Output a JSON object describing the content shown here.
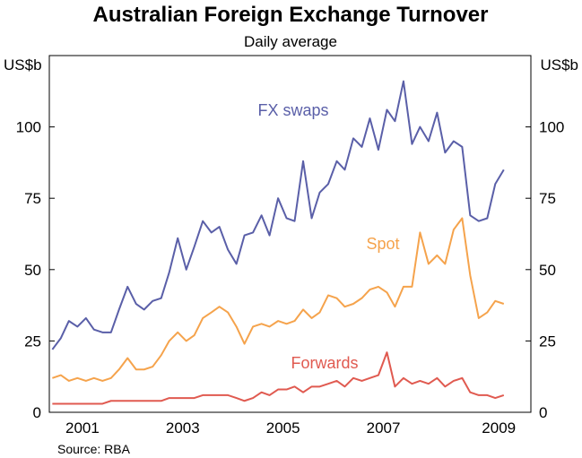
{
  "chart_data": {
    "type": "line",
    "title": "Australian Foreign Exchange Turnover",
    "subtitle": "Daily average",
    "y_label": "US$b",
    "y2_label": "US$b",
    "source": "Source: RBA",
    "x": [
      2000.9,
      2001.07,
      2001.23,
      2001.4,
      2001.57,
      2001.73,
      2001.9,
      2002.07,
      2002.23,
      2002.4,
      2002.57,
      2002.73,
      2002.9,
      2003.07,
      2003.23,
      2003.4,
      2003.57,
      2003.73,
      2003.9,
      2004.07,
      2004.23,
      2004.4,
      2004.57,
      2004.73,
      2004.9,
      2005.07,
      2005.23,
      2005.4,
      2005.57,
      2005.73,
      2005.9,
      2006.07,
      2006.23,
      2006.4,
      2006.57,
      2006.73,
      2006.9,
      2007.07,
      2007.23,
      2007.4,
      2007.57,
      2007.73,
      2007.9,
      2008.07,
      2008.23,
      2008.4,
      2008.57,
      2008.73,
      2008.9,
      2009.07,
      2009.23,
      2009.4,
      2009.57,
      2009.73,
      2009.9
    ],
    "series": [
      {
        "name": "FX swaps",
        "color": "#5a5fa8",
        "values": [
          22,
          26,
          32,
          30,
          33,
          29,
          28,
          28,
          36,
          44,
          38,
          36,
          39,
          40,
          49,
          61,
          50,
          58,
          67,
          63,
          65,
          57,
          52,
          62,
          63,
          69,
          62,
          75,
          68,
          67,
          88,
          68,
          77,
          80,
          88,
          85,
          96,
          93,
          103,
          92,
          106,
          102,
          116,
          94,
          100,
          95,
          105,
          91,
          95,
          93,
          69,
          67,
          68,
          80,
          85
        ]
      },
      {
        "name": "Spot",
        "color": "#f5a34c",
        "values": [
          12,
          13,
          11,
          12,
          11,
          12,
          11,
          12,
          15,
          19,
          15,
          15,
          16,
          20,
          25,
          28,
          25,
          27,
          33,
          35,
          37,
          35,
          30,
          24,
          30,
          31,
          30,
          32,
          31,
          32,
          36,
          33,
          35,
          41,
          40,
          37,
          38,
          40,
          43,
          44,
          42,
          37,
          44,
          44,
          63,
          52,
          55,
          52,
          64,
          68,
          48,
          33,
          35,
          39,
          38
        ]
      },
      {
        "name": "Forwards",
        "color": "#e05a50",
        "values": [
          3,
          3,
          3,
          3,
          3,
          3,
          3,
          4,
          4,
          4,
          4,
          4,
          4,
          4,
          5,
          5,
          5,
          5,
          6,
          6,
          6,
          6,
          5,
          4,
          5,
          7,
          6,
          8,
          8,
          9,
          7,
          9,
          9,
          10,
          11,
          9,
          12,
          11,
          12,
          13,
          21,
          9,
          12,
          10,
          11,
          10,
          12,
          9,
          11,
          12,
          7,
          6,
          6,
          5,
          6
        ]
      }
    ],
    "xlim": [
      2000.84,
      2010.44
    ],
    "xticks": [
      {
        "value": 2001.5,
        "label": "2001"
      },
      {
        "value": 2003.5,
        "label": "2003"
      },
      {
        "value": 2005.5,
        "label": "2005"
      },
      {
        "value": 2007.5,
        "label": "2007"
      },
      {
        "value": 2009.8,
        "label": "2009"
      }
    ],
    "ylim": [
      0,
      125
    ],
    "yticks": [
      0,
      25,
      50,
      75,
      100
    ],
    "y2lim": [
      0,
      125
    ],
    "y2ticks": [
      0,
      25,
      50,
      75,
      100
    ],
    "grid": false
  }
}
